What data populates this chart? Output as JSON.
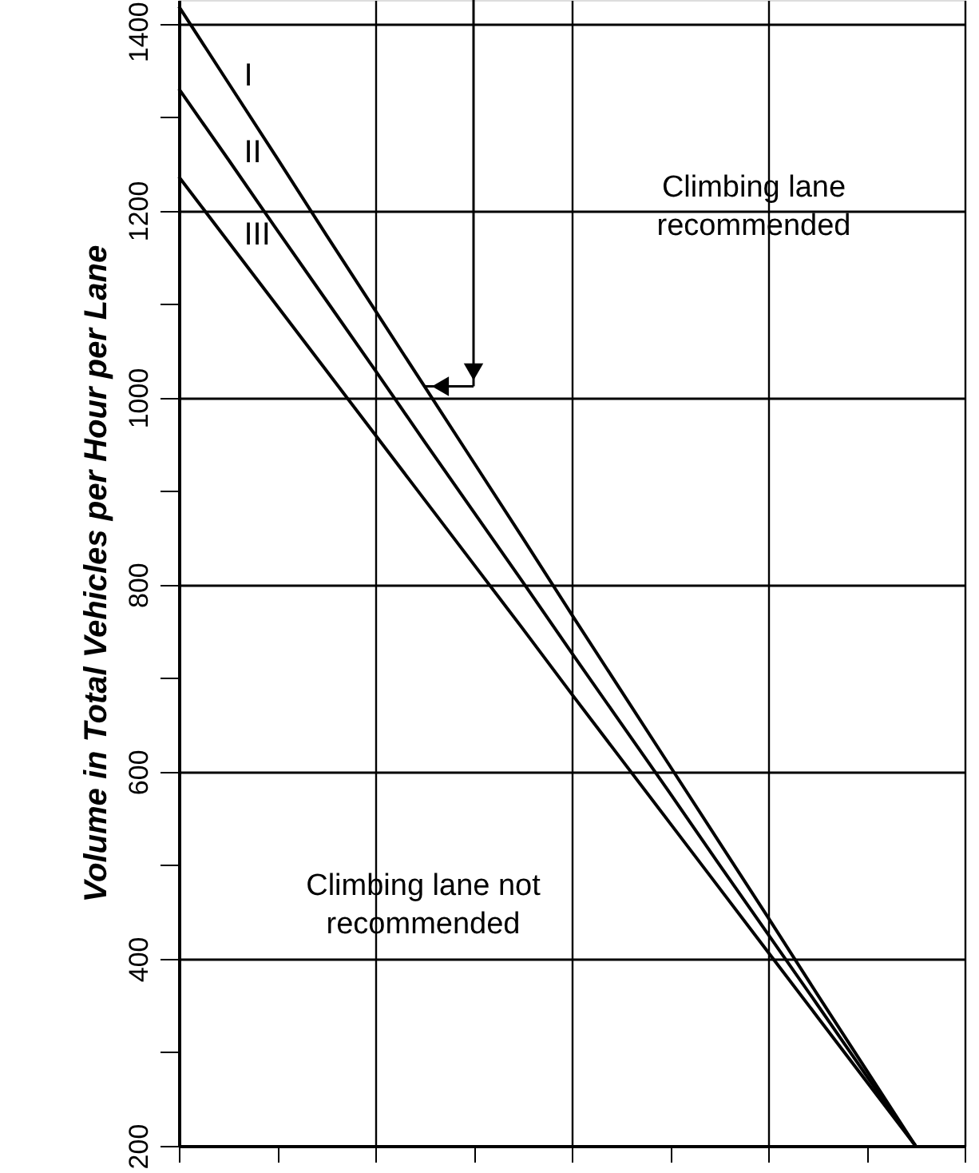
{
  "chart_data": {
    "type": "line",
    "ylabel": "Volume in Total  Vehicles per Hour per Lane",
    "categories": [
      null,
      null,
      null,
      null,
      null,
      null,
      null,
      null,
      null,
      null,
      null,
      null,
      null,
      null,
      null,
      null,
      null
    ],
    "series": [
      {
        "name": "I",
        "color": "#000000",
        "values": [
          1418,
          1337,
          1256,
          1174,
          1093,
          1012,
          931,
          850,
          768,
          687,
          606,
          525,
          444,
          362,
          281,
          200,
          null
        ]
      },
      {
        "name": "II",
        "color": "#000000",
        "values": [
          1330,
          1255,
          1179,
          1104,
          1029,
          953,
          878,
          803,
          727,
          652,
          577,
          501,
          426,
          351,
          275,
          200,
          null
        ]
      },
      {
        "name": "III",
        "color": "#000000",
        "values": [
          1236,
          1167,
          1098,
          1029,
          960,
          891,
          822,
          753,
          683,
          614,
          545,
          476,
          407,
          338,
          269,
          200,
          null
        ]
      }
    ],
    "ylim": [
      200,
      1425
    ],
    "yticks": [
      200,
      {
        "value": 300,
        "label": null
      },
      400,
      {
        "value": 500,
        "label": null
      },
      600,
      {
        "value": 700,
        "label": null
      },
      800,
      {
        "value": 900,
        "label": null
      },
      1000,
      {
        "value": 1100,
        "label": null
      },
      1200,
      {
        "value": 1300,
        "label": null
      },
      1400
    ],
    "annotations": [
      "Climbing lane\nrecommended",
      "Climbing lane not\nrecommended"
    ],
    "grid": true,
    "marker": "none",
    "line_style": "solid",
    "tick_labels": "y"
  }
}
